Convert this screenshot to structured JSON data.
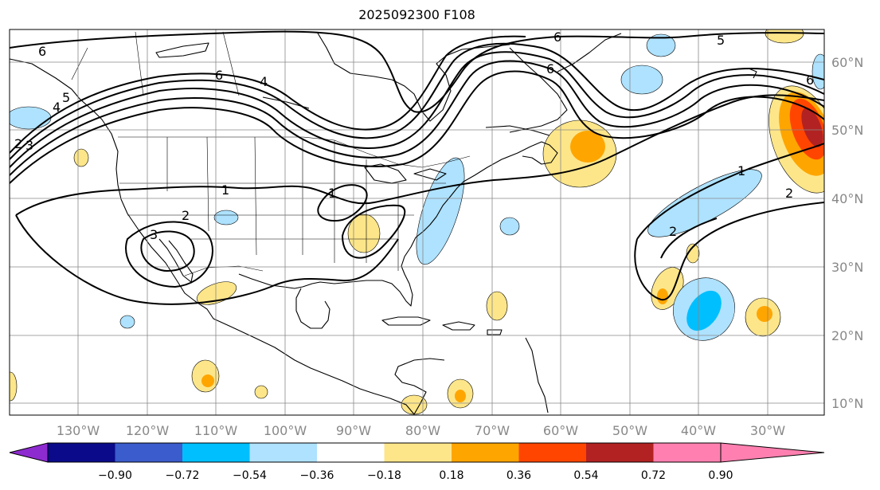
{
  "title": "2025092300 F108",
  "map": {
    "projection": "lat-lon",
    "lon_range": [
      -140,
      -22
    ],
    "lat_range": [
      7,
      64
    ],
    "gridlines": true,
    "lon_labels": [
      "130°W",
      "120°W",
      "110°W",
      "100°W",
      "90°W",
      "80°W",
      "70°W",
      "60°W",
      "50°W",
      "40°W",
      "30°W"
    ],
    "lat_labels": [
      "60°N",
      "50°N",
      "40°N",
      "30°N",
      "20°N",
      "10°N"
    ],
    "contour_color": "#000000",
    "contour_labels": [
      "6",
      "6",
      "6",
      "6",
      "5",
      "6",
      "1",
      "2",
      "2",
      "3",
      "1",
      "1",
      "2",
      "2",
      "3",
      "4",
      "5",
      "4"
    ]
  },
  "colorbar": {
    "labels": [
      "−0.90",
      "−0.72",
      "−0.54",
      "−0.36",
      "−0.18",
      "0.18",
      "0.36",
      "0.54",
      "0.72",
      "0.90"
    ],
    "colors": [
      "#8e2bd0",
      "#0a0a8a",
      "#3a5ccc",
      "#00bfff",
      "#aee2ff",
      "#ffffff",
      "#fde68a",
      "#ffa500",
      "#ff4500",
      "#b22222",
      "#ff80b0"
    ]
  }
}
